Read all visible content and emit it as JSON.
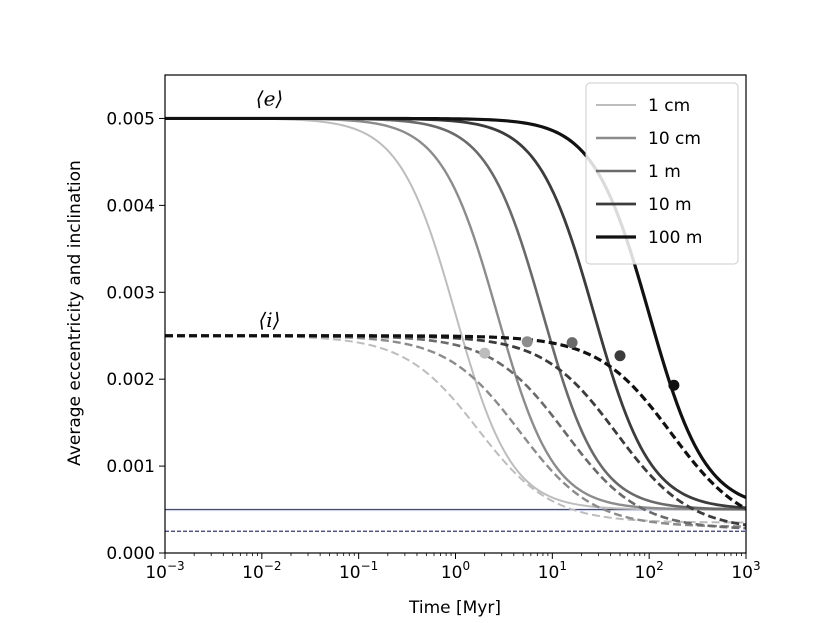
{
  "chart_data": {
    "type": "line",
    "x_scale": "log",
    "xlabel": "Time [Myr]",
    "ylabel": "Average eccentricity and inclination",
    "xlim": [
      0.001,
      1000
    ],
    "ylim": [
      0.0,
      0.0055
    ],
    "x_ticks": [
      {
        "value": 0.001,
        "base": "10",
        "exp": "−3"
      },
      {
        "value": 0.01,
        "base": "10",
        "exp": "−2"
      },
      {
        "value": 0.1,
        "base": "10",
        "exp": "−1"
      },
      {
        "value": 1,
        "base": "10",
        "exp": "0"
      },
      {
        "value": 10,
        "base": "10",
        "exp": "1"
      },
      {
        "value": 100,
        "base": "10",
        "exp": "2"
      },
      {
        "value": 1000,
        "base": "10",
        "exp": "3"
      }
    ],
    "y_ticks": [
      {
        "value": 0.0,
        "label": "0.000"
      },
      {
        "value": 0.001,
        "label": "0.001"
      },
      {
        "value": 0.002,
        "label": "0.002"
      },
      {
        "value": 0.003,
        "label": "0.003"
      },
      {
        "value": 0.004,
        "label": "0.004"
      },
      {
        "value": 0.005,
        "label": "0.005"
      }
    ],
    "annotations": [
      {
        "text": "⟨e⟩",
        "x": 0.012,
        "y": 0.00515
      },
      {
        "text": "⟨i⟩",
        "x": 0.012,
        "y": 0.0026
      }
    ],
    "reference_lines": [
      {
        "name": "e floor",
        "y": 0.0005,
        "style": "solid",
        "color": "#3344cc"
      },
      {
        "name": "i floor",
        "y": 0.00025,
        "style": "dashed",
        "color": "#2233bb"
      }
    ],
    "legend": {
      "position": "top-right"
    },
    "series": [
      {
        "name": "1 cm",
        "color": "#bdbdbd",
        "width": 2,
        "t0": 1.0,
        "i_floor": 0.00035,
        "marker": {
          "x": 2.0,
          "y": 0.0023
        }
      },
      {
        "name": "10 cm",
        "color": "#8c8c8c",
        "width": 2.4,
        "t0": 2.7,
        "i_floor": 0.0003,
        "marker": {
          "x": 5.5,
          "y": 0.00243
        }
      },
      {
        "name": "1 m",
        "color": "#6a6a6a",
        "width": 2.6,
        "t0": 8.0,
        "i_floor": 0.00027,
        "marker": {
          "x": 16,
          "y": 0.00242
        }
      },
      {
        "name": "10 m",
        "color": "#3c3c3c",
        "width": 2.8,
        "t0": 27.0,
        "i_floor": 0.00026,
        "marker": {
          "x": 50,
          "y": 0.00227
        }
      },
      {
        "name": "100 m",
        "color": "#111111",
        "width": 3.2,
        "t0": 100.0,
        "i_floor": 0.00025,
        "marker": {
          "x": 180,
          "y": 0.00193
        }
      }
    ]
  }
}
